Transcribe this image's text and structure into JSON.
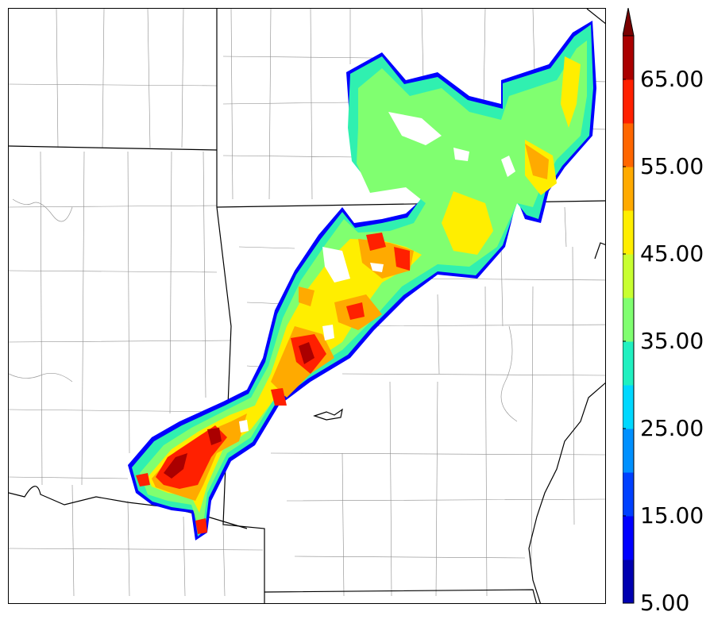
{
  "colorbar": {
    "levels": [
      5,
      10,
      15,
      20,
      25,
      30,
      35,
      40,
      45,
      50,
      55,
      60,
      65,
      70
    ],
    "colors": [
      "#0000b0",
      "#0000ff",
      "#0040ff",
      "#0090ff",
      "#00d8ff",
      "#20f0c0",
      "#80ff70",
      "#c8ff30",
      "#ffee00",
      "#ffaa00",
      "#ff6600",
      "#ff2000",
      "#aa0000"
    ],
    "extend_color": "#7a0000",
    "tick_labels": [
      {
        "value": 5,
        "text": "5.00"
      },
      {
        "value": 15,
        "text": "15.00"
      },
      {
        "value": 25,
        "text": "25.00"
      },
      {
        "value": 35,
        "text": "35.00"
      },
      {
        "value": 45,
        "text": "45.00"
      },
      {
        "value": 55,
        "text": "55.00"
      },
      {
        "value": 65,
        "text": "65.00"
      }
    ]
  },
  "map": {
    "state_border_color": "#000000",
    "county_border_color": "#888888",
    "background": "#ffffff"
  }
}
